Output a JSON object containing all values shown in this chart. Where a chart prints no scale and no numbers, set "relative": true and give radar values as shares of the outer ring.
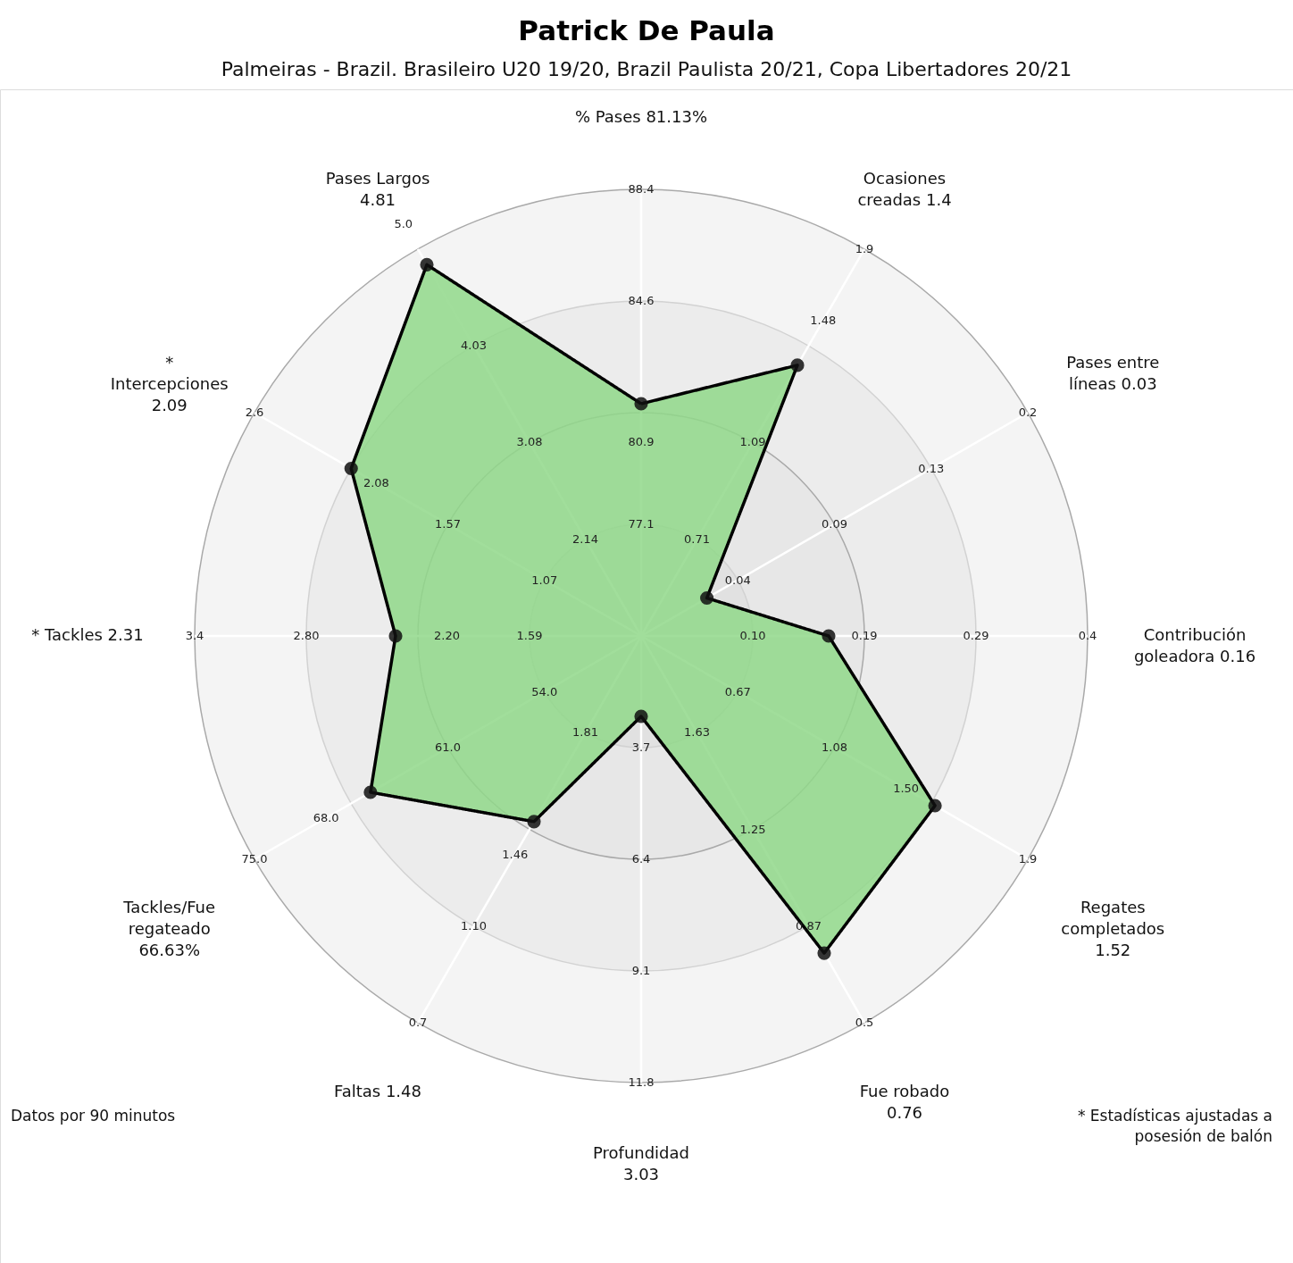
{
  "chart_data": {
    "type": "radar",
    "title": "Patrick De Paula",
    "subtitle": "Palmeiras - Brazil. Brasileiro U20 19/20, Brazil Paulista 20/21, Copa Libertadores 20/21",
    "categories": [
      "% Pases 81.13%",
      "Ocasiones creadas 1.4",
      "Pases entre líneas 0.03",
      "Contribución goleadora 0.16",
      "Regates completados 1.52",
      "Fue robado 0.76",
      "Profundidad 3.03",
      "Faltas 1.48",
      "Tackles/Fue regateado 66.63%",
      "* Tackles 2.31",
      "* Intercepciones 2.09",
      "Pases Largos 4.81"
    ],
    "relative": true,
    "series": [
      {
        "color": "#90d88a",
        "values": [
          0.52,
          0.7,
          0.17,
          0.42,
          0.76,
          0.82,
          0.18,
          0.48,
          0.7,
          0.55,
          0.75,
          0.96
        ]
      }
    ],
    "marker": "circle",
    "grid": true,
    "annotations": [
      "Datos por 90 minutos",
      "* Estadísticas ajustadas a posesión de balón",
      {
        "text": "77.1",
        "x": "% Pases 81.13%"
      },
      {
        "text": "80.9",
        "x": "% Pases 81.13%"
      },
      {
        "text": "84.6",
        "x": "% Pases 81.13%"
      },
      {
        "text": "88.4",
        "x": "% Pases 81.13%"
      },
      {
        "text": "0.71",
        "x": "Ocasiones creadas 1.4"
      },
      {
        "text": "1.09",
        "x": "Ocasiones creadas 1.4"
      },
      {
        "text": "1.48",
        "x": "Ocasiones creadas 1.4"
      },
      {
        "text": "1.9",
        "x": "Ocasiones creadas 1.4"
      },
      {
        "text": "0.04",
        "x": "Pases entre líneas 0.03"
      },
      {
        "text": "0.09",
        "x": "Pases entre líneas 0.03"
      },
      {
        "text": "0.13",
        "x": "Pases entre líneas 0.03"
      },
      {
        "text": "0.2",
        "x": "Pases entre líneas 0.03"
      },
      {
        "text": "0.10",
        "x": "Contribución goleadora 0.16"
      },
      {
        "text": "0.19",
        "x": "Contribución goleadora 0.16"
      },
      {
        "text": "0.29",
        "x": "Contribución goleadora 0.16"
      },
      {
        "text": "0.4",
        "x": "Contribución goleadora 0.16"
      },
      {
        "text": "0.67",
        "x": "Regates completados 1.52"
      },
      {
        "text": "1.08",
        "x": "Regates completados 1.52"
      },
      {
        "text": "1.50",
        "x": "Regates completados 1.52"
      },
      {
        "text": "1.9",
        "x": "Regates completados 1.52"
      },
      {
        "text": "1.63",
        "x": "Fue robado 0.76"
      },
      {
        "text": "1.25",
        "x": "Fue robado 0.76"
      },
      {
        "text": "0.87",
        "x": "Fue robado 0.76"
      },
      {
        "text": "0.5",
        "x": "Fue robado 0.76"
      },
      {
        "text": "3.7",
        "x": "Profundidad 3.03"
      },
      {
        "text": "6.4",
        "x": "Profundidad 3.03"
      },
      {
        "text": "9.1",
        "x": "Profundidad 3.03"
      },
      {
        "text": "11.8",
        "x": "Profundidad 3.03"
      },
      {
        "text": "1.81",
        "x": "Faltas 1.48"
      },
      {
        "text": "1.46",
        "x": "Faltas 1.48"
      },
      {
        "text": "1.10",
        "x": "Faltas 1.48"
      },
      {
        "text": "0.7",
        "x": "Faltas 1.48"
      },
      {
        "text": "54.0",
        "x": "Tackles/Fue regateado 66.63%"
      },
      {
        "text": "61.0",
        "x": "Tackles/Fue regateado 66.63%"
      },
      {
        "text": "68.0",
        "x": "Tackles/Fue regateado 66.63%"
      },
      {
        "text": "75.0",
        "x": "Tackles/Fue regateado 66.63%"
      },
      {
        "text": "1.59",
        "x": "* Tackles 2.31"
      },
      {
        "text": "2.20",
        "x": "* Tackles 2.31"
      },
      {
        "text": "2.80",
        "x": "* Tackles 2.31"
      },
      {
        "text": "3.4",
        "x": "* Tackles 2.31"
      },
      {
        "text": "1.07",
        "x": "* Intercepciones 2.09"
      },
      {
        "text": "1.57",
        "x": "* Intercepciones 2.09"
      },
      {
        "text": "2.08",
        "x": "* Intercepciones 2.09"
      },
      {
        "text": "2.6",
        "x": "* Intercepciones 2.09"
      },
      {
        "text": "2.14",
        "x": "Pases Largos 4.81"
      },
      {
        "text": "3.08",
        "x": "Pases Largos 4.81"
      },
      {
        "text": "4.03",
        "x": "Pases Largos 4.81"
      },
      {
        "text": "5.0",
        "x": "Pases Largos 4.81"
      }
    ]
  }
}
